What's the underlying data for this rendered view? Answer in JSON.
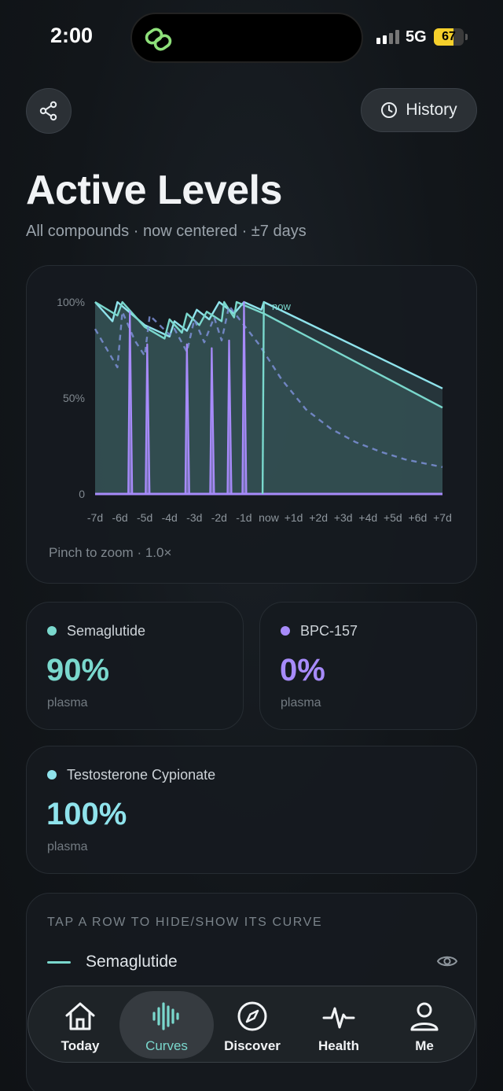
{
  "status_bar": {
    "time": "2:00",
    "network": "5G",
    "battery": "67",
    "battery_level": 0.67,
    "colors": {
      "battery": "#f5cf2b"
    }
  },
  "header": {
    "share_icon": "share-icon",
    "history_label": "History",
    "history_icon": "clock-icon"
  },
  "page": {
    "title": "Active Levels",
    "subtitle": "All compounds · now centered · ±7 days"
  },
  "chart_data": {
    "type": "line",
    "x_unit": "days relative to now",
    "xlim": [
      -7,
      7
    ],
    "ylim": [
      0,
      100
    ],
    "y_ticks": [
      "100%",
      "50%",
      "0"
    ],
    "x_ticks": [
      "-7d",
      "-6d",
      "-5d",
      "-4d",
      "-3d",
      "-2d",
      "-1d",
      "now",
      "+1d",
      "+2d",
      "+3d",
      "+4d",
      "+5d",
      "+6d",
      "+7d"
    ],
    "now_label": "now",
    "series": [
      {
        "color": "#8fe3ec",
        "style": "solid",
        "fill": true,
        "points": [
          [
            -7,
            100
          ],
          [
            -6.3,
            90
          ],
          [
            -6.1,
            100
          ],
          [
            -5,
            88
          ],
          [
            -4,
            82
          ],
          [
            -3.8,
            90
          ],
          [
            -3.3,
            85
          ],
          [
            -2.9,
            96
          ],
          [
            -2.4,
            91
          ],
          [
            -2,
            100
          ],
          [
            -1.4,
            94
          ],
          [
            -1,
            100
          ],
          [
            -0.3,
            96
          ],
          [
            -0.2,
            100
          ],
          [
            7,
            55
          ]
        ]
      },
      {
        "color": "#7ad8cd",
        "style": "solid",
        "fill": true,
        "points": [
          [
            -7,
            100
          ],
          [
            -6.1,
            93
          ],
          [
            -5.9,
            100
          ],
          [
            -5,
            87
          ],
          [
            -4.2,
            81
          ],
          [
            -4,
            91
          ],
          [
            -3.5,
            84
          ],
          [
            -3.3,
            94
          ],
          [
            -2.8,
            88
          ],
          [
            -2.5,
            95
          ],
          [
            -1.9,
            90
          ],
          [
            -1.8,
            100
          ],
          [
            -1.4,
            92
          ],
          [
            -1.3,
            100
          ],
          [
            -0.2,
            94
          ],
          [
            7,
            45
          ]
        ]
      },
      {
        "color": "#7b8fd6",
        "style": "dashed",
        "fill": false,
        "points": [
          [
            -7,
            86
          ],
          [
            -6.1,
            66
          ],
          [
            -5.9,
            95
          ],
          [
            -5.4,
            80
          ],
          [
            -5,
            72
          ],
          [
            -4.8,
            93
          ],
          [
            -4,
            83
          ],
          [
            -3.8,
            86
          ],
          [
            -3.3,
            74
          ],
          [
            -3,
            91
          ],
          [
            -2.6,
            79
          ],
          [
            -2.2,
            92
          ],
          [
            -1.9,
            80
          ],
          [
            -1.6,
            98
          ],
          [
            -1,
            88
          ],
          [
            -0.4,
            78
          ],
          [
            0.5,
            60
          ],
          [
            1.5,
            44
          ],
          [
            2.5,
            34
          ],
          [
            3.5,
            27
          ],
          [
            4.5,
            22
          ],
          [
            5.5,
            18
          ],
          [
            7,
            14
          ]
        ]
      },
      {
        "color": "#a78bfa",
        "style": "spikes",
        "fill": false,
        "spike_days": [
          -5.6,
          -4.9,
          -3.3,
          -2.3,
          -1.6,
          -1.0
        ],
        "spike_heights": [
          95,
          78,
          78,
          76,
          80,
          100
        ],
        "baseline": 0
      }
    ],
    "now_jump": {
      "color": "#7ad8cd",
      "from": 0,
      "to": 100
    }
  },
  "chart": {
    "zoom_hint": "Pinch to zoom · 1.0×"
  },
  "compounds": [
    {
      "name": "Semaglutide",
      "value": "90%",
      "unit": "plasma",
      "color": "#7ad8cd"
    },
    {
      "name": "BPC-157",
      "value": "0%",
      "unit": "plasma",
      "color": "#a78bfa"
    },
    {
      "name": "Testosterone Cypionate",
      "value": "100%",
      "unit": "plasma",
      "color": "#8fe3ec"
    }
  ],
  "curve_list": {
    "header": "TAP A ROW TO HIDE/SHOW ITS CURVE",
    "rows": [
      {
        "name": "Semaglutide",
        "color": "#7ad8cd",
        "icon": "eye-icon"
      }
    ]
  },
  "tab_bar": {
    "tabs": [
      {
        "label": "Today",
        "icon": "house-icon"
      },
      {
        "label": "Curves",
        "icon": "waveform-icon",
        "active": true
      },
      {
        "label": "Discover",
        "icon": "compass-icon"
      },
      {
        "label": "Health",
        "icon": "heartbeat-icon"
      },
      {
        "label": "Me",
        "icon": "person-icon"
      }
    ]
  }
}
